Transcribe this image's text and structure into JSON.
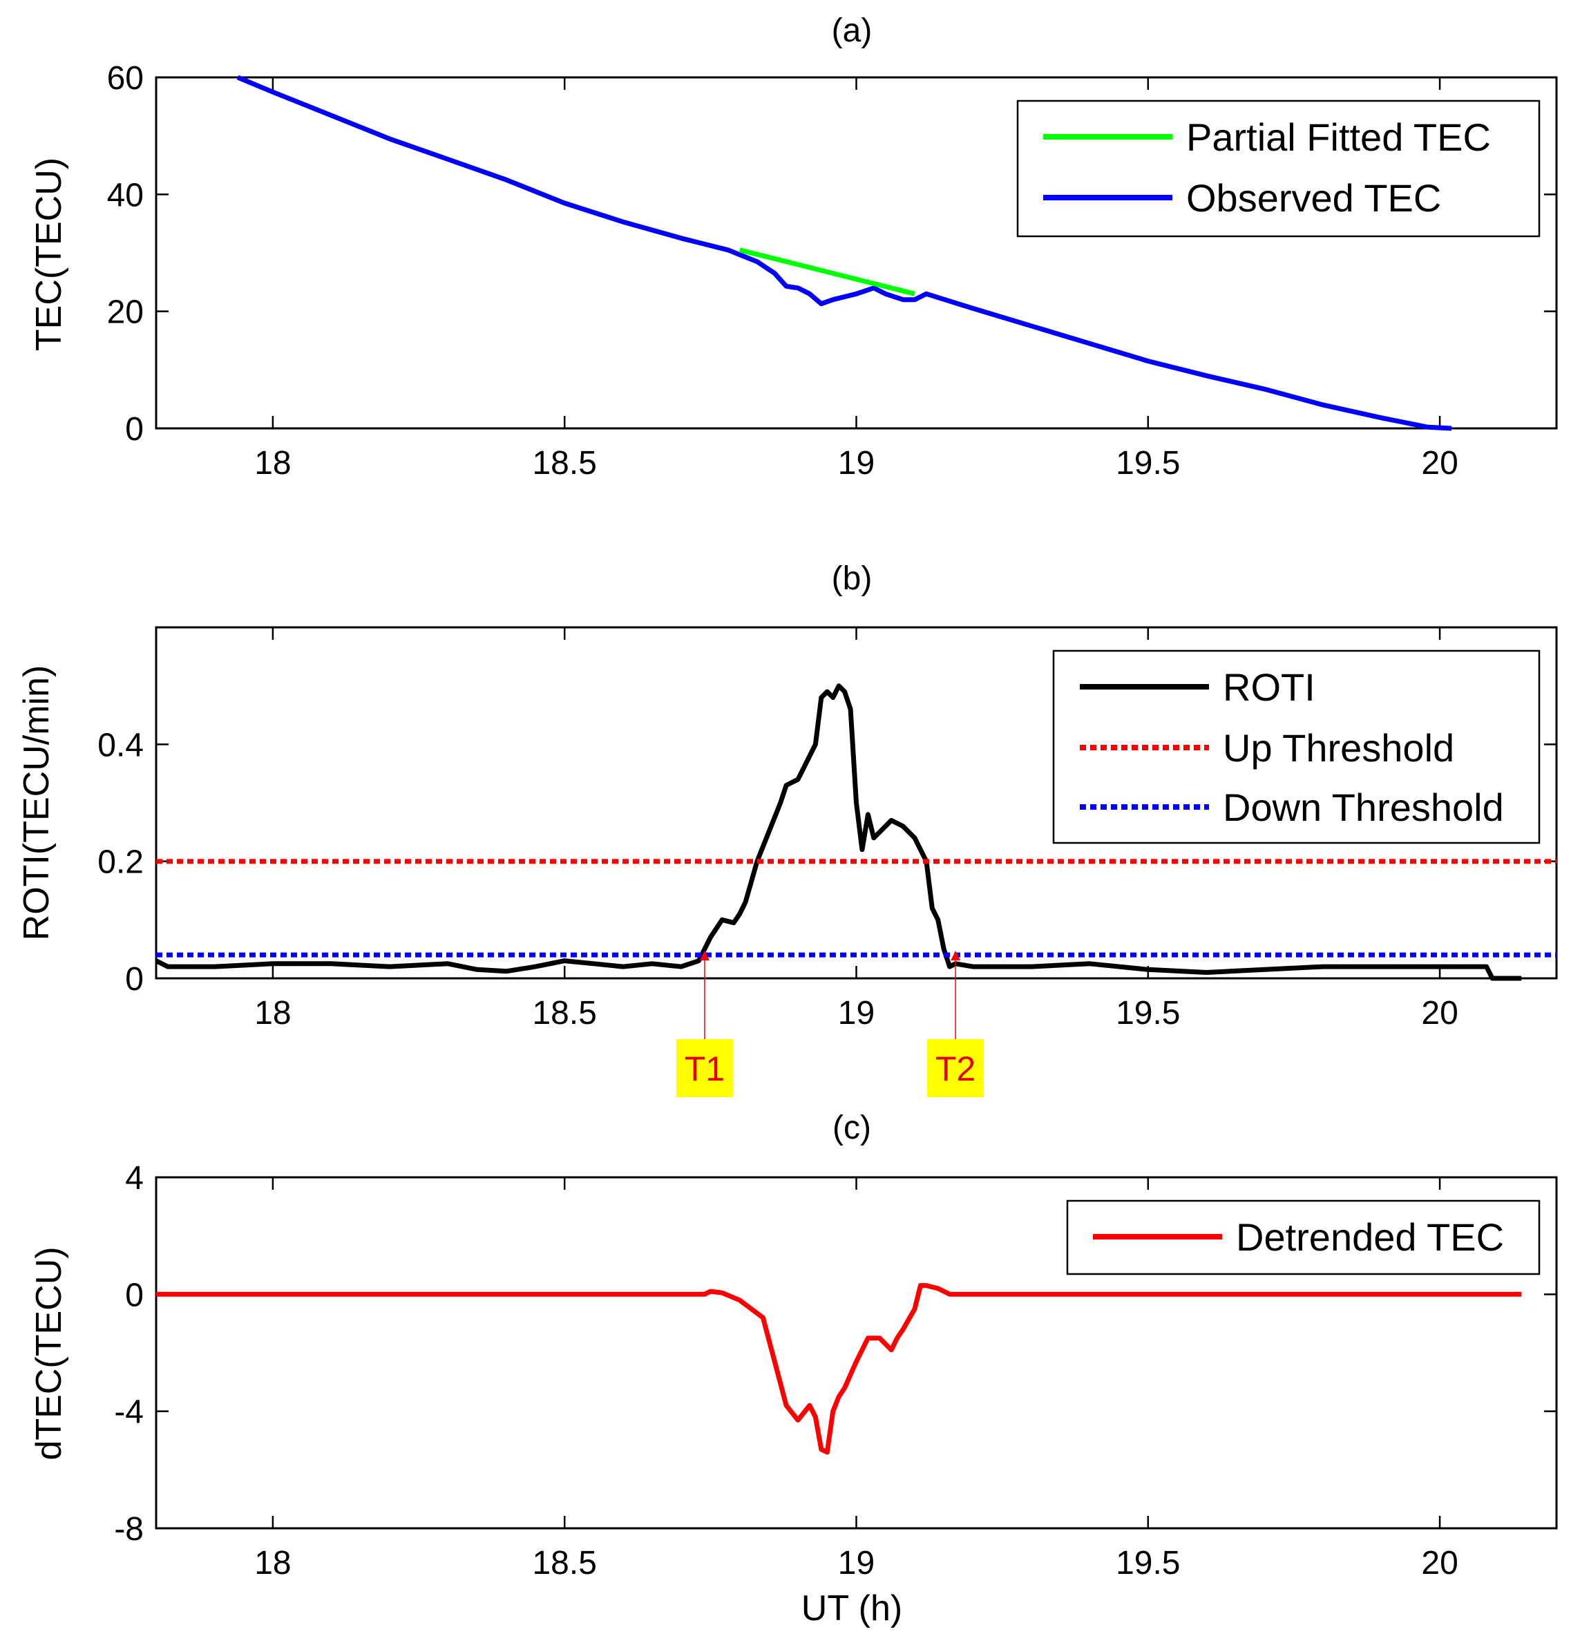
{
  "colors": {
    "observed": "#0000ff",
    "fitted": "#00ff00",
    "roti": "#000000",
    "up_threshold": "#ff0000",
    "down_threshold": "#0000ff",
    "detrended": "#ff0000",
    "marker_bg": "#ffff00",
    "marker_text": "#ff0000"
  },
  "chart_data": [
    {
      "type": "line",
      "title": "(a)",
      "xlabel": "",
      "ylabel": "TEC(TECU)",
      "xlim": [
        17.8,
        20.2
      ],
      "ylim": [
        0,
        60
      ],
      "xticks": [
        18,
        18.5,
        19,
        19.5,
        20
      ],
      "xtick_labels": [
        "18",
        "18.5",
        "19",
        "19.5",
        "20"
      ],
      "yticks": [
        0,
        20,
        40,
        60
      ],
      "ytick_labels": [
        "0",
        "20",
        "40",
        "60"
      ],
      "legend": {
        "position": "top-right",
        "entries": [
          "Partial Fitted TEC",
          "Observed TEC"
        ]
      },
      "series": [
        {
          "name": "Observed TEC",
          "x": [
            17.94,
            18.0,
            18.1,
            18.2,
            18.3,
            18.4,
            18.5,
            18.6,
            18.7,
            18.78,
            18.83,
            18.86,
            18.88,
            18.9,
            18.92,
            18.94,
            18.96,
            18.98,
            19.0,
            19.03,
            19.05,
            19.08,
            19.1,
            19.12,
            19.2,
            19.3,
            19.4,
            19.5,
            19.6,
            19.7,
            19.8,
            19.9,
            19.98,
            20.02
          ],
          "y": [
            60,
            57.5,
            53.5,
            49.5,
            46,
            42.5,
            38.5,
            35.3,
            32.5,
            30.5,
            28.5,
            26.5,
            24.3,
            24,
            23,
            21.3,
            22,
            22.5,
            23,
            24,
            23,
            22,
            22,
            23,
            20.5,
            17.5,
            14.5,
            11.5,
            9,
            6.7,
            4,
            1.8,
            0.2,
            0
          ]
        },
        {
          "name": "Partial Fitted TEC",
          "x": [
            18.8,
            18.9,
            19.0,
            19.1
          ],
          "y": [
            30.5,
            28,
            25.5,
            23
          ]
        }
      ]
    },
    {
      "type": "line",
      "title": "(b)",
      "xlabel": "",
      "ylabel": "ROTI(TECU/min)",
      "xlim": [
        17.8,
        20.2
      ],
      "ylim": [
        0,
        0.6
      ],
      "xticks": [
        18,
        18.5,
        19,
        19.5,
        20
      ],
      "xtick_labels": [
        "18",
        "18.5",
        "19",
        "19.5",
        "20"
      ],
      "yticks": [
        0,
        0.2,
        0.4
      ],
      "ytick_labels": [
        "0",
        "0.2",
        "0.4"
      ],
      "legend": {
        "position": "top-right",
        "entries": [
          "ROTI",
          "Up Threshold",
          "Down Threshold"
        ]
      },
      "series": [
        {
          "name": "ROTI",
          "x": [
            17.8,
            17.82,
            17.9,
            18.0,
            18.1,
            18.2,
            18.3,
            18.35,
            18.4,
            18.45,
            18.5,
            18.55,
            18.6,
            18.65,
            18.7,
            18.73,
            18.75,
            18.77,
            18.79,
            18.8,
            18.81,
            18.83,
            18.85,
            18.87,
            18.88,
            18.9,
            18.91,
            18.92,
            18.93,
            18.94,
            18.95,
            18.96,
            18.97,
            18.98,
            18.99,
            19.0,
            19.01,
            19.02,
            19.03,
            19.04,
            19.06,
            19.08,
            19.1,
            19.12,
            19.13,
            19.14,
            19.15,
            19.16,
            19.17,
            19.2,
            19.3,
            19.4,
            19.5,
            19.6,
            19.7,
            19.8,
            19.9,
            20.0,
            20.08,
            20.09,
            20.14
          ],
          "y": [
            0.03,
            0.02,
            0.02,
            0.025,
            0.025,
            0.02,
            0.025,
            0.015,
            0.012,
            0.02,
            0.03,
            0.025,
            0.02,
            0.025,
            0.02,
            0.03,
            0.07,
            0.1,
            0.095,
            0.11,
            0.13,
            0.2,
            0.25,
            0.3,
            0.33,
            0.34,
            0.36,
            0.38,
            0.4,
            0.48,
            0.49,
            0.48,
            0.5,
            0.49,
            0.46,
            0.3,
            0.22,
            0.28,
            0.24,
            0.25,
            0.27,
            0.26,
            0.24,
            0.2,
            0.12,
            0.1,
            0.05,
            0.02,
            0.025,
            0.02,
            0.02,
            0.025,
            0.015,
            0.01,
            0.015,
            0.02,
            0.02,
            0.02,
            0.02,
            0.0,
            0.0
          ]
        },
        {
          "name": "Up Threshold",
          "x": [
            17.8,
            20.2
          ],
          "y": [
            0.2,
            0.2
          ]
        },
        {
          "name": "Down Threshold",
          "x": [
            17.8,
            20.2
          ],
          "y": [
            0.04,
            0.04
          ]
        }
      ],
      "annotations": [
        {
          "label": "T1",
          "x": 18.74,
          "y": 0.04
        },
        {
          "label": "T2",
          "x": 19.17,
          "y": 0.04
        }
      ]
    },
    {
      "type": "line",
      "title": "(c)",
      "xlabel": "UT (h)",
      "ylabel": "dTEC(TECU)",
      "xlim": [
        17.8,
        20.2
      ],
      "ylim": [
        -8,
        4
      ],
      "xticks": [
        18,
        18.5,
        19,
        19.5,
        20
      ],
      "xtick_labels": [
        "18",
        "18.5",
        "19",
        "19.5",
        "20"
      ],
      "yticks": [
        -8,
        -4,
        0,
        4
      ],
      "ytick_labels": [
        "-8",
        "-4",
        "0",
        "4"
      ],
      "legend": {
        "position": "top-right",
        "entries": [
          "Detrended TEC"
        ]
      },
      "series": [
        {
          "name": "Detrended TEC",
          "x": [
            17.8,
            18.74,
            18.75,
            18.77,
            18.8,
            18.82,
            18.84,
            18.86,
            18.88,
            18.9,
            18.92,
            18.93,
            18.94,
            18.95,
            18.96,
            18.97,
            18.98,
            19.0,
            19.02,
            19.04,
            19.06,
            19.07,
            19.08,
            19.1,
            19.11,
            19.12,
            19.14,
            19.16,
            19.18,
            20.14
          ],
          "y": [
            0,
            0,
            0.1,
            0.05,
            -0.2,
            -0.5,
            -0.8,
            -2.3,
            -3.8,
            -4.3,
            -3.8,
            -4.2,
            -5.3,
            -5.4,
            -4.0,
            -3.5,
            -3.2,
            -2.3,
            -1.5,
            -1.5,
            -1.9,
            -1.5,
            -1.2,
            -0.5,
            0.3,
            0.3,
            0.2,
            0.0,
            0.0,
            0.0
          ]
        }
      ]
    }
  ]
}
